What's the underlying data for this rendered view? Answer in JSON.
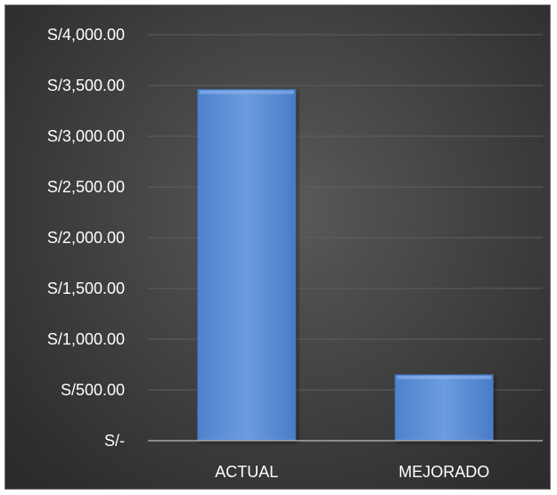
{
  "chart_data": {
    "type": "bar",
    "categories": [
      "ACTUAL",
      "MEJORADO"
    ],
    "values": [
      3460,
      650
    ],
    "ylim": [
      0,
      4000
    ],
    "y_ticks": [
      0,
      500,
      1000,
      1500,
      2000,
      2500,
      3000,
      3500,
      4000
    ],
    "y_tick_labels": [
      "S/-",
      "S/500.00",
      "S/1,000.00",
      "S/1,500.00",
      "S/2,000.00",
      "S/2,500.00",
      "S/3,000.00",
      "S/3,500.00",
      "S/4,000.00"
    ],
    "grid": true,
    "legend": "none",
    "colors": {
      "bar_fill": "#5b8fd6",
      "bar_edge": "#3f6fb3",
      "background": "#404040",
      "gridline": "#5e5e5e",
      "axis": "#a6a6a6",
      "text": "#ffffff"
    }
  }
}
